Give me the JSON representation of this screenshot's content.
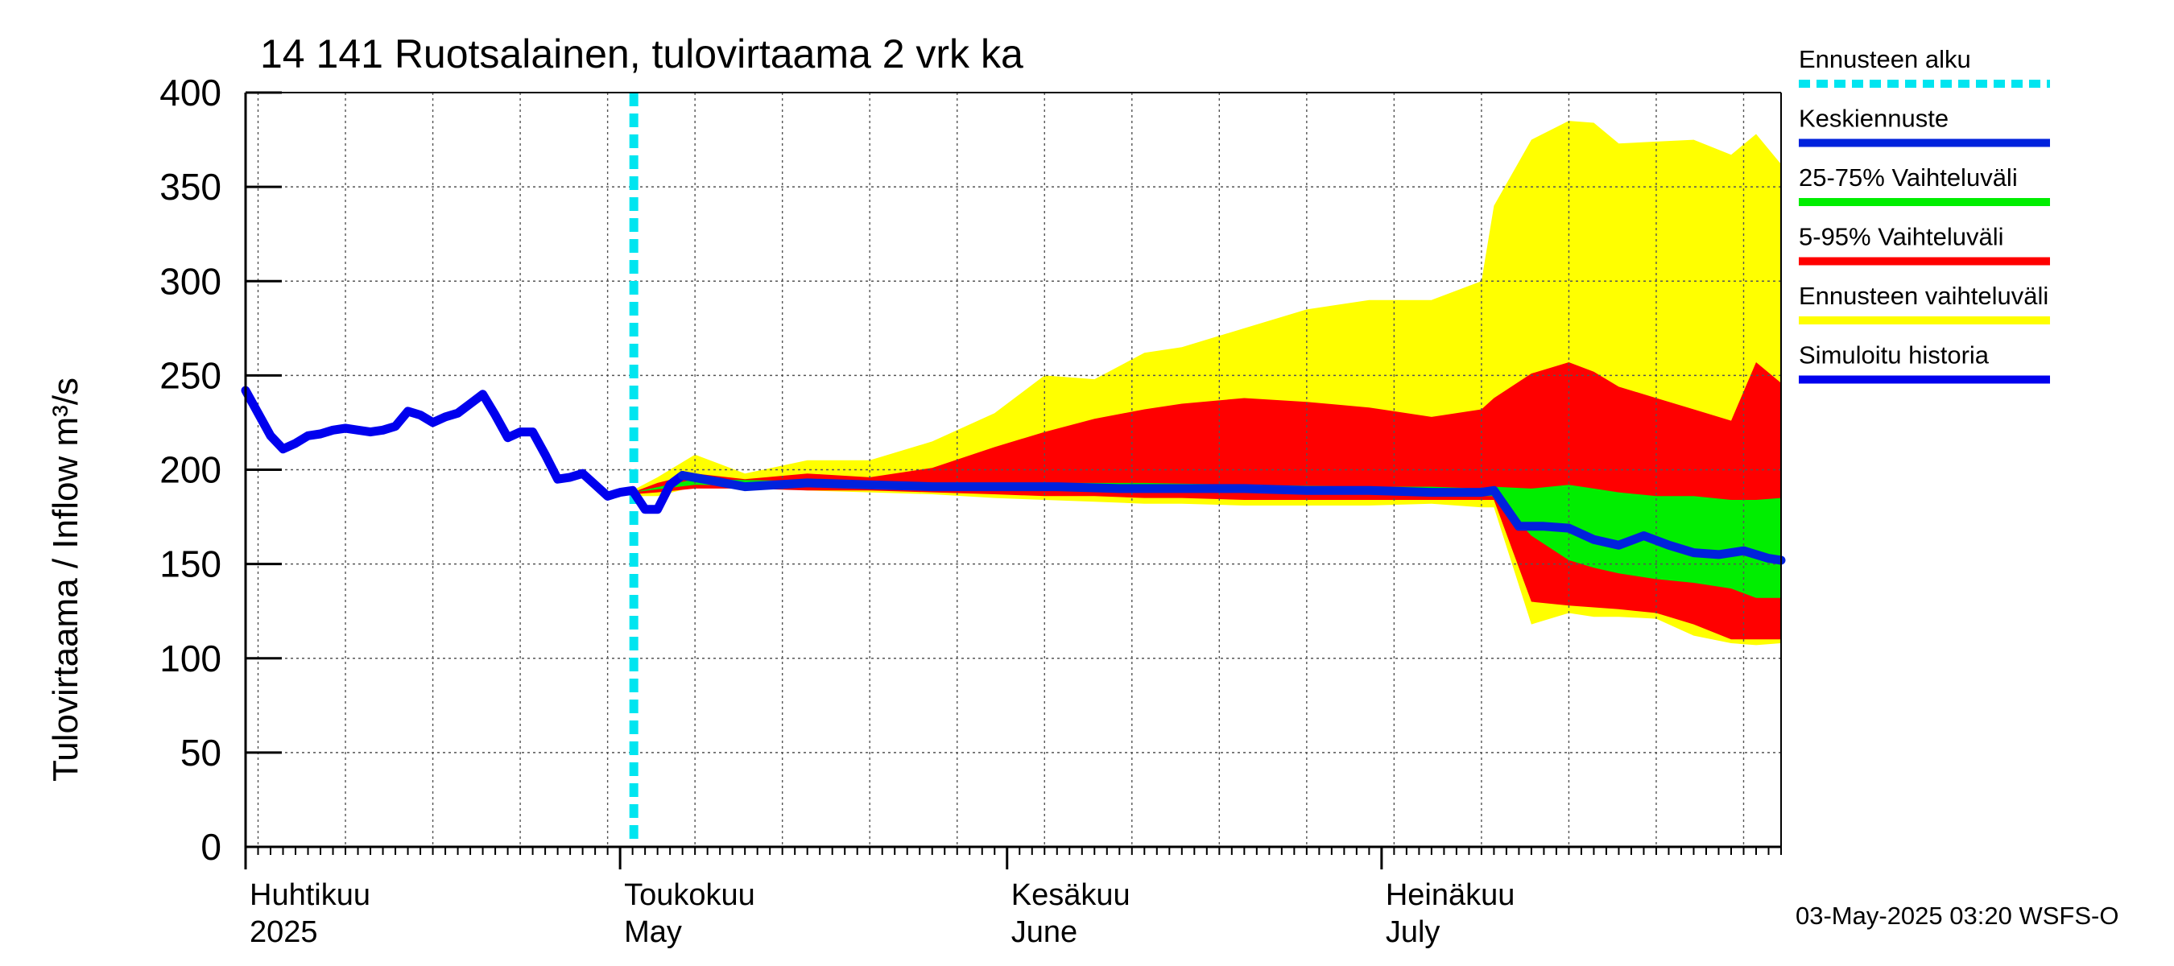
{
  "chart_data": {
    "type": "area",
    "title": "14 141 Ruotsalainen, tulovirtaama 2 vrk ka",
    "ylabel": "Tulovirtaama / Inflow    m³/s",
    "ylim": [
      0,
      400
    ],
    "yticks": [
      0,
      50,
      100,
      150,
      200,
      250,
      300,
      350,
      400
    ],
    "xlim_days": [
      0,
      123
    ],
    "month_labels": [
      {
        "day": 0,
        "fi": "Huhtikuu",
        "en": "2025"
      },
      {
        "day": 30,
        "fi": "Toukokuu",
        "en": "May"
      },
      {
        "day": 61,
        "fi": "Kesäkuu",
        "en": "June"
      },
      {
        "day": 91,
        "fi": "Heinäkuu",
        "en": "July"
      }
    ],
    "forecast_start_day": 31.1,
    "colors": {
      "forecast_start": "#00e5f0",
      "mean": "#0022dd",
      "iqr": "#00ee00",
      "p5_95": "#ff0000",
      "range": "#ffff00",
      "history": "#0000ee"
    },
    "legend": [
      {
        "label": "Ennusteen alku",
        "key": "forecast_start",
        "dashed": true
      },
      {
        "label": "Keskiennuste",
        "key": "mean",
        "dashed": false
      },
      {
        "label": "25-75% Vaihteluväli",
        "key": "iqr",
        "dashed": false
      },
      {
        "label": "5-95% Vaihteluväli",
        "key": "p5_95",
        "dashed": false
      },
      {
        "label": "Ennusteen vaihteluväli",
        "key": "range",
        "dashed": false
      },
      {
        "label": "Simuloitu historia",
        "key": "history",
        "dashed": false
      }
    ],
    "series": [
      {
        "name": "Simuloitu historia",
        "x": [
          0,
          1,
          2,
          3,
          4,
          5,
          6,
          7,
          8,
          9,
          10,
          11,
          12,
          13,
          14,
          15,
          16,
          17,
          18,
          19,
          20,
          21,
          22,
          23,
          24,
          25,
          26,
          27,
          28,
          29,
          30,
          31,
          32,
          33,
          34,
          35
        ],
        "values": [
          242,
          230,
          218,
          211,
          214,
          218,
          219,
          221,
          222,
          221,
          220,
          221,
          223,
          231,
          229,
          225,
          228,
          230,
          235,
          240,
          229,
          217,
          220,
          220,
          208,
          195,
          196,
          198,
          192,
          186,
          188,
          189,
          179,
          179,
          192,
          197
        ]
      },
      {
        "name": "Keskiennuste",
        "x": [
          35,
          40,
          45,
          50,
          55,
          60,
          65,
          70,
          75,
          80,
          85,
          90,
          95,
          98,
          99,
          100,
          102,
          104,
          106,
          108,
          110,
          112,
          114,
          116,
          118,
          120,
          122,
          123
        ],
        "values": [
          197,
          191,
          193,
          192,
          191,
          191,
          191,
          190,
          190,
          190,
          189,
          189,
          188,
          188,
          188,
          189,
          170,
          170,
          169,
          163,
          160,
          165,
          160,
          156,
          155,
          157,
          153,
          152
        ]
      },
      {
        "name": "Ennusteen vaihteluväli",
        "x": [
          31,
          33,
          36,
          40,
          45,
          50,
          55,
          60,
          64,
          68,
          72,
          75,
          80,
          85,
          90,
          95,
          99,
          100,
          103,
          106,
          108,
          110,
          113,
          116,
          119,
          121,
          123
        ],
        "upper": [
          189,
          196,
          208,
          198,
          205,
          205,
          215,
          230,
          250,
          248,
          262,
          265,
          275,
          285,
          290,
          290,
          300,
          340,
          375,
          385,
          384,
          373,
          374,
          375,
          367,
          378,
          362
        ],
        "lower": [
          186,
          186,
          191,
          191,
          189,
          188,
          187,
          185,
          184,
          183,
          182,
          182,
          181,
          181,
          181,
          182,
          180,
          180,
          118,
          124,
          122,
          122,
          121,
          112,
          108,
          107,
          108
        ]
      },
      {
        "name": "5-95% Vaihteluväli",
        "x": [
          31,
          33,
          36,
          40,
          45,
          50,
          55,
          60,
          64,
          68,
          72,
          75,
          80,
          85,
          90,
          95,
          99,
          100,
          103,
          106,
          108,
          110,
          113,
          116,
          119,
          121,
          123
        ],
        "upper": [
          188,
          193,
          198,
          195,
          198,
          196,
          201,
          212,
          220,
          227,
          232,
          235,
          238,
          236,
          233,
          228,
          232,
          238,
          251,
          257,
          252,
          244,
          238,
          232,
          226,
          257,
          246
        ],
        "lower": [
          187,
          188,
          190,
          190,
          189,
          189,
          188,
          187,
          186,
          186,
          185,
          185,
          184,
          184,
          184,
          184,
          184,
          184,
          130,
          128,
          127,
          126,
          124,
          118,
          110,
          110,
          110
        ]
      },
      {
        "name": "25-75% Vaihteluväli",
        "x": [
          31,
          36,
          45,
          55,
          64,
          72,
          80,
          90,
          95,
          99,
          100,
          103,
          106,
          108,
          110,
          113,
          116,
          119,
          121,
          123
        ],
        "upper": [
          188,
          195,
          194,
          193,
          193,
          193,
          192,
          191,
          191,
          190,
          191,
          190,
          192,
          190,
          188,
          186,
          186,
          184,
          184,
          185
        ],
        "lower": [
          188,
          192,
          191,
          190,
          189,
          189,
          188,
          187,
          187,
          186,
          186,
          165,
          152,
          148,
          145,
          142,
          140,
          137,
          132,
          132
        ]
      }
    ]
  },
  "footer": {
    "timestamp": "03-May-2025 03:20 WSFS-O"
  }
}
